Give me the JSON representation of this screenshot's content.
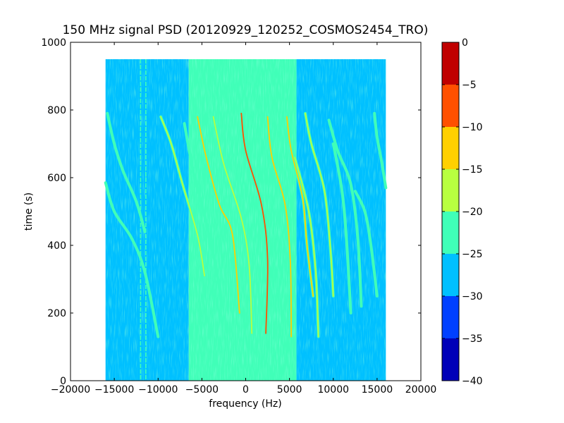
{
  "chart_data": {
    "type": "heatmap",
    "title": "150 MHz signal PSD (20120929_120252_COSMOS2454_TRO)",
    "xlabel": "frequency (Hz)",
    "ylabel": "time (s)",
    "xlim": [
      -20000,
      20000
    ],
    "ylim": [
      0,
      1000
    ],
    "x_ticks": [
      -20000,
      -15000,
      -10000,
      -5000,
      0,
      5000,
      10000,
      15000,
      20000
    ],
    "x_tick_labels": [
      "−20000",
      "−15000",
      "−10000",
      "−5000",
      "0",
      "5000",
      "10000",
      "15000",
      "20000"
    ],
    "y_ticks": [
      0,
      200,
      400,
      600,
      800,
      1000
    ],
    "y_tick_labels": [
      "0",
      "200",
      "400",
      "600",
      "800",
      "1000"
    ],
    "data_extent": {
      "x": [
        -16000,
        16000
      ],
      "y": [
        0,
        950
      ]
    },
    "colorbar": {
      "range": [
        -40,
        0
      ],
      "ticks": [
        0,
        -5,
        -10,
        -15,
        -20,
        -25,
        -30,
        -35,
        -40
      ],
      "tick_labels": [
        "0",
        "−5",
        "−10",
        "−15",
        "−20",
        "−25",
        "−30",
        "−35",
        "−40"
      ],
      "bands": [
        {
          "from": -40,
          "to": -35,
          "color": "#0000b8"
        },
        {
          "from": -35,
          "to": -30,
          "color": "#0040ff"
        },
        {
          "from": -30,
          "to": -25,
          "color": "#00c0ff"
        },
        {
          "from": -25,
          "to": -20,
          "color": "#40ffb8"
        },
        {
          "from": -20,
          "to": -15,
          "color": "#b8ff40"
        },
        {
          "from": -15,
          "to": -10,
          "color": "#ffd000"
        },
        {
          "from": -10,
          "to": -5,
          "color": "#ff5000"
        },
        {
          "from": -5,
          "to": 0,
          "color": "#c00000"
        }
      ]
    },
    "regions": [
      {
        "x": [
          -16000,
          -6500
        ],
        "level": -27.5
      },
      {
        "x": [
          -6500,
          5800
        ],
        "level": -22.5
      },
      {
        "x": [
          5800,
          16000
        ],
        "level": -27.5
      }
    ],
    "noise_lines": [
      {
        "x": -12000,
        "level": -22.5
      },
      {
        "x": -11400,
        "level": -22.5
      }
    ],
    "traces": [
      {
        "points": [
          [
            -16000,
            585
          ],
          [
            -15000,
            500
          ],
          [
            -13000,
            420
          ],
          [
            -11500,
            320
          ],
          [
            -10000,
            130
          ]
        ],
        "level": -22.5
      },
      {
        "points": [
          [
            -15800,
            790
          ],
          [
            -15000,
            700
          ],
          [
            -14000,
            620
          ],
          [
            -12500,
            530
          ],
          [
            -11500,
            440
          ]
        ],
        "level": -22.5
      },
      {
        "points": [
          [
            -9700,
            780
          ],
          [
            -8500,
            700
          ],
          [
            -7200,
            580
          ],
          [
            -5500,
            430
          ],
          [
            -4700,
            310
          ]
        ],
        "level": -17.5
      },
      {
        "points": [
          [
            -7000,
            760
          ],
          [
            -6000,
            620
          ],
          [
            -5000,
            520
          ],
          [
            -3500,
            350
          ],
          [
            -2800,
            240
          ]
        ],
        "level": -22.5
      },
      {
        "points": [
          [
            -5500,
            780
          ],
          [
            -4500,
            660
          ],
          [
            -3000,
            520
          ],
          [
            -1500,
            430
          ],
          [
            -700,
            200
          ]
        ],
        "level": -12.5
      },
      {
        "points": [
          [
            -3700,
            780
          ],
          [
            -2500,
            640
          ],
          [
            -500,
            480
          ],
          [
            400,
            340
          ],
          [
            700,
            140
          ]
        ],
        "level": -17.5
      },
      {
        "points": [
          [
            -500,
            790
          ],
          [
            0,
            680
          ],
          [
            1800,
            520
          ],
          [
            2500,
            360
          ],
          [
            2300,
            140
          ]
        ],
        "level": -7.5
      },
      {
        "points": [
          [
            2500,
            780
          ],
          [
            3000,
            660
          ],
          [
            4500,
            520
          ],
          [
            5100,
            350
          ],
          [
            5200,
            130
          ]
        ],
        "level": -12.5
      },
      {
        "points": [
          [
            4700,
            780
          ],
          [
            5200,
            680
          ],
          [
            6500,
            540
          ],
          [
            7000,
            400
          ],
          [
            7700,
            250
          ]
        ],
        "level": -12.5
      },
      {
        "points": [
          [
            5600,
            660
          ],
          [
            7200,
            500
          ],
          [
            8000,
            320
          ],
          [
            8300,
            130
          ]
        ],
        "level": -17.5
      },
      {
        "points": [
          [
            6800,
            790
          ],
          [
            7500,
            700
          ],
          [
            9000,
            560
          ],
          [
            9700,
            380
          ],
          [
            10000,
            250
          ]
        ],
        "level": -17.5
      },
      {
        "points": [
          [
            9500,
            770
          ],
          [
            10500,
            680
          ],
          [
            12000,
            580
          ],
          [
            12800,
            420
          ],
          [
            13200,
            220
          ]
        ],
        "level": -22.5
      },
      {
        "points": [
          [
            10000,
            700
          ],
          [
            11000,
            560
          ],
          [
            11500,
            420
          ],
          [
            12000,
            200
          ]
        ],
        "level": -22.5
      },
      {
        "points": [
          [
            12500,
            560
          ],
          [
            13600,
            500
          ],
          [
            14300,
            400
          ],
          [
            15000,
            250
          ]
        ],
        "level": -22.5
      },
      {
        "points": [
          [
            14700,
            790
          ],
          [
            15000,
            720
          ],
          [
            15500,
            650
          ],
          [
            16000,
            570
          ]
        ],
        "level": -22.5
      }
    ]
  }
}
